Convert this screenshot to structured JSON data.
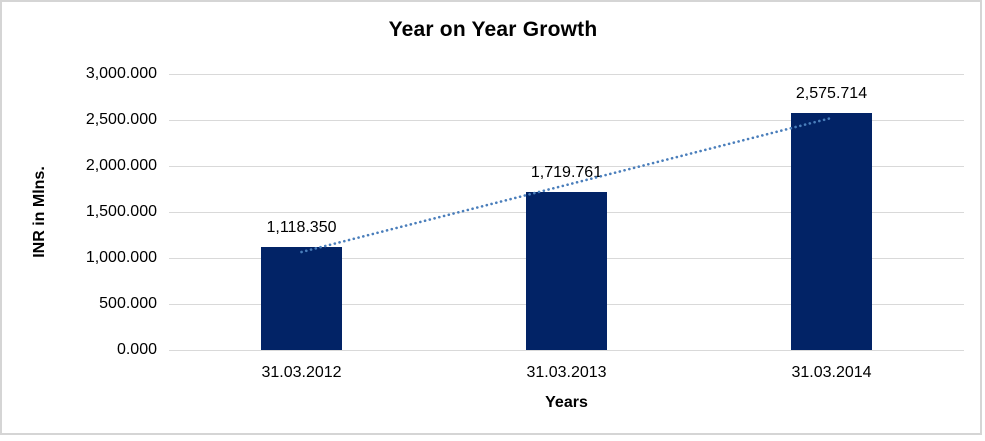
{
  "chart_data": {
    "type": "bar",
    "title": "Year on Year Growth",
    "xlabel": "Years",
    "ylabel": "INR in Mlns.",
    "categories": [
      "31.03.2012",
      "31.03.2013",
      "31.03.2014"
    ],
    "values": [
      1118.35,
      1719.761,
      2575.714
    ],
    "data_labels": [
      "1,118.350",
      "1,719.761",
      "2,575.714"
    ],
    "yticks_labels": [
      "3,000.000",
      "2,500.000",
      "2,000.000",
      "1,500.000",
      "1,000.000",
      "500.000",
      "0.000"
    ],
    "ylim": [
      0,
      3000
    ],
    "grid": true,
    "legend": "none",
    "trendline": {
      "type": "linear",
      "style": "dotted"
    },
    "colors": {
      "bar": "#022366",
      "trendline": "#4a7ebb",
      "gridline": "#d9d9d9",
      "text": "#000000",
      "frame_border": "#d5d5d5"
    }
  }
}
